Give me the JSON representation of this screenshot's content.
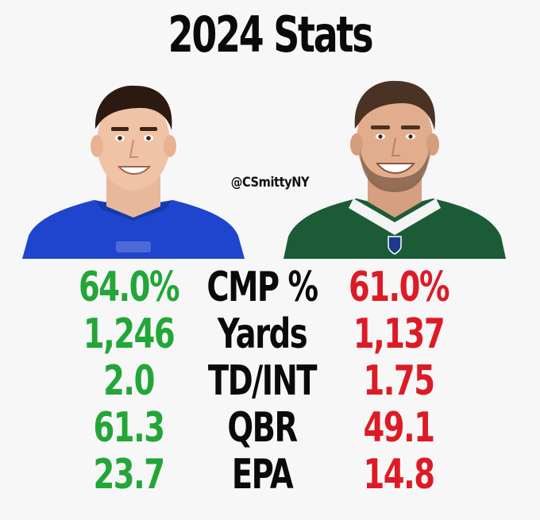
{
  "title": "2024 Stats",
  "handle": "@CSmittyNY",
  "colors": {
    "left_value": "#22a638",
    "right_value": "#dd1b25",
    "label": "#0a0a0a",
    "left_jersey": "#1f45cf",
    "right_jersey": "#1b5c36"
  },
  "stats": [
    {
      "left": "64.0%",
      "label": "CMP %",
      "right": "61.0%"
    },
    {
      "left": "1,246",
      "label": "Yards",
      "right": "1,137"
    },
    {
      "left": "2.0",
      "label": "TD/INT",
      "right": "1.75"
    },
    {
      "left": "61.3",
      "label": "QBR",
      "right": "49.1"
    },
    {
      "left": "23.7",
      "label": "EPA",
      "right": "14.8"
    }
  ]
}
